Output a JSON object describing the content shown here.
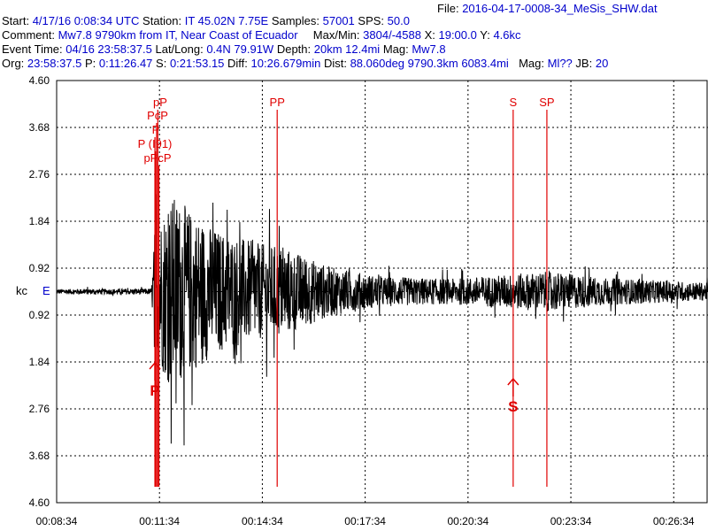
{
  "header": {
    "file_label": "File:",
    "file_value": "2016-04-17-0008-34_MeSis_SHW.dat",
    "start_label": "Start:",
    "start_value": "4/17/16  0:08:34 UTC",
    "station_label": "Station:",
    "station_value": "IT 45.02N 7.75E",
    "samples_label": "Samples:",
    "samples_value": "57001",
    "sps_label": "SPS:",
    "sps_value": "50.0",
    "comment_label": "Comment:",
    "comment_value": "Mw7.8 9790km from IT, Near Coast of Ecuador",
    "maxmin_label": "Max/Min:",
    "maxmin_value": "3804/-4588",
    "x_label": "X:",
    "x_value": "19:00.0",
    "y_label": "Y:",
    "y_value": "4.6kc",
    "event_label": "Event Time:",
    "event_value": "04/16 23:58:37.5",
    "latlong_label": "Lat/Long:",
    "latlong_value": "0.4N 79.91W",
    "depth_label": "Depth:",
    "depth_value": "20km 12.4mi",
    "mag_label": "Mag:",
    "mag_value": "Mw7.8",
    "org_label": "Org:",
    "org_value": "23:58:37.5",
    "p_label": "P:",
    "p_value": "0:11:26.47",
    "s_label": "S:",
    "s_value": "0:21:53.15",
    "diff_label": "Diff:",
    "diff_value": "10:26.679min",
    "dist_label": "Dist:",
    "dist_value": "88.060deg 9790.3km 6083.4mi",
    "mag2_label": "Mag:",
    "mag2_value": "Ml??",
    "jb_label": "JB:",
    "jb_value": "20"
  },
  "channel": {
    "unit": "kc",
    "component": "E"
  },
  "chart_data": {
    "type": "line",
    "title": "",
    "xlabel": "",
    "ylabel": "kc",
    "xlim": [
      "00:08:34",
      "00:27:34"
    ],
    "ylim": [
      -4.6,
      4.6
    ],
    "grid": true,
    "x_ticks": [
      "00:08:34",
      "00:11:34",
      "00:14:34",
      "00:17:34",
      "00:20:34",
      "00:23:34",
      "00:26:34"
    ],
    "y_ticks": [
      "4.60",
      "3.68",
      "2.76",
      "1.84",
      "0.92",
      "0.92",
      "1.84",
      "2.76",
      "3.68",
      "4.60"
    ],
    "phases": [
      {
        "label": "pP",
        "time": "00:11:31"
      },
      {
        "label": "PcP",
        "time": "00:11:29"
      },
      {
        "label": "P",
        "time": "00:11:26"
      },
      {
        "label": "P (I91)",
        "time": "00:11:27"
      },
      {
        "label": "pPcP",
        "time": "00:11:33"
      },
      {
        "label": "PP",
        "time": "00:15:00"
      },
      {
        "label": "S",
        "time": "00:21:53"
      },
      {
        "label": "SP",
        "time": "00:22:52"
      }
    ],
    "picks": [
      {
        "label": "P",
        "time": "00:11:26"
      },
      {
        "label": "S",
        "time": "00:21:53"
      }
    ],
    "envelope": [
      {
        "t": "00:08:34",
        "amp": 0.1
      },
      {
        "t": "00:11:20",
        "amp": 0.12
      },
      {
        "t": "00:11:26",
        "amp": 2.6
      },
      {
        "t": "00:11:55",
        "amp": 3.9
      },
      {
        "t": "00:12:30",
        "amp": 3.2
      },
      {
        "t": "00:13:10",
        "amp": 2.5
      },
      {
        "t": "00:14:30",
        "amp": 1.9
      },
      {
        "t": "00:15:10",
        "amp": 1.8
      },
      {
        "t": "00:16:30",
        "amp": 1.0
      },
      {
        "t": "00:18:00",
        "amp": 0.6
      },
      {
        "t": "00:20:00",
        "amp": 0.5
      },
      {
        "t": "00:21:53",
        "amp": 0.7
      },
      {
        "t": "00:23:00",
        "amp": 0.8
      },
      {
        "t": "00:24:30",
        "amp": 0.55
      },
      {
        "t": "00:27:34",
        "amp": 0.35
      }
    ]
  }
}
